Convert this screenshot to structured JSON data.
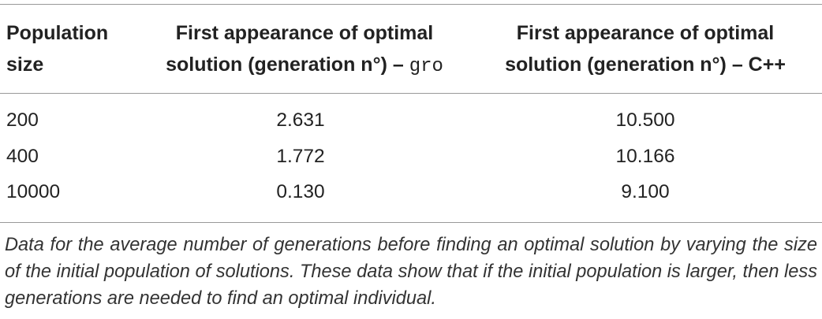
{
  "table": {
    "headers": [
      {
        "text": "Population size"
      },
      {
        "text": "First appearance of optimal solution (generation n°) –",
        "code": "gro"
      },
      {
        "text": "First appearance of optimal solution (generation n°) – C++"
      }
    ],
    "rows": [
      [
        "200",
        "2.631",
        "10.500"
      ],
      [
        "400",
        "1.772",
        "10.166"
      ],
      [
        "10000",
        "0.130",
        "9.100"
      ]
    ],
    "caption": "Data for the average number of generations before finding an optimal solution by varying the size of the initial population of solutions. These data show that if the initial population is larger, then less generations are needed to find an optimal individual."
  }
}
